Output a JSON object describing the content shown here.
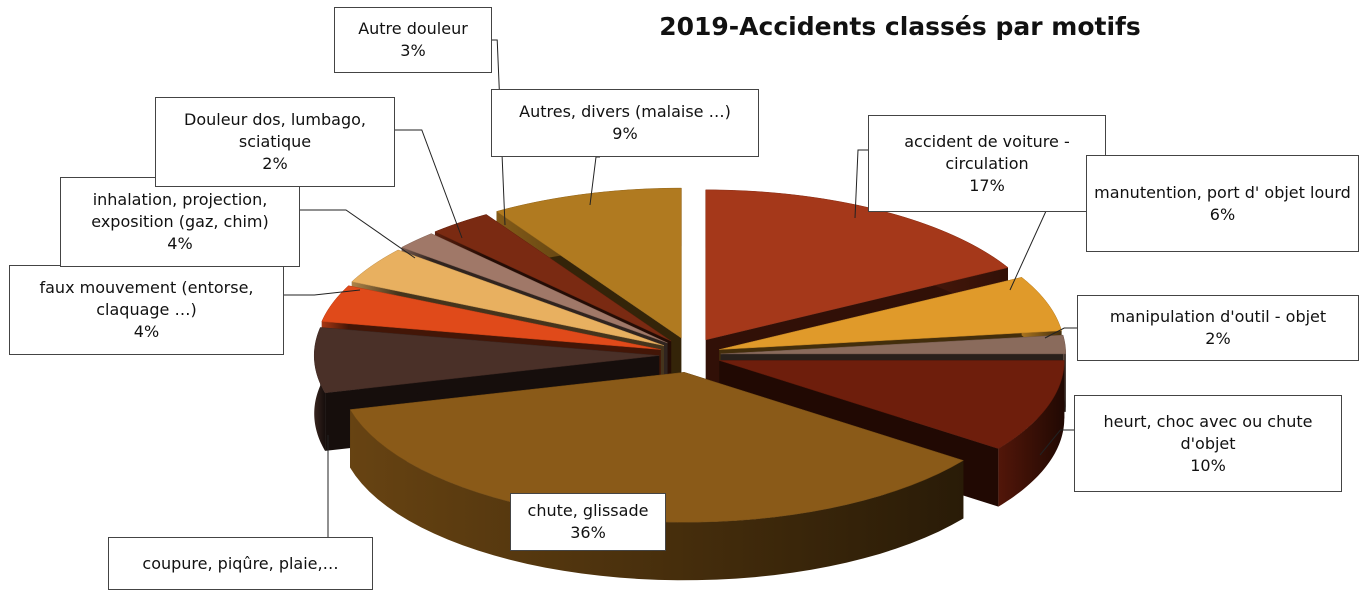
{
  "chart_data": {
    "type": "pie3d",
    "title": "2019-Accidents classés par motifs",
    "categories": [
      "accident de voiture - circulation",
      "manutention, port d' objet lourd",
      "manipulation d'outil - objet",
      "heurt, choc avec ou chute d'objet",
      "chute, glissade",
      "coupure, piqûre, plaie,…",
      "faux mouvement (entorse, claquage …)",
      "inhalation, projection, exposition (gaz, chim)",
      "Douleur dos, lumbago, sciatique",
      "Autre douleur",
      "Autres, divers (malaise …)"
    ],
    "values": [
      17,
      6,
      2,
      10,
      36,
      7,
      4,
      4,
      2,
      3,
      9
    ],
    "value_labels": [
      "17%",
      "6%",
      "2%",
      "10%",
      "36%",
      null,
      "4%",
      "4%",
      "2%",
      "3%",
      "9%"
    ],
    "colors": [
      "#a5381a",
      "#e09a2a",
      "#8a6b5c",
      "#6e1e0c",
      "#8a5a18",
      "#4a3028",
      "#e04a1a",
      "#e8b060",
      "#a07868",
      "#7a2a12",
      "#b07a20"
    ]
  }
}
